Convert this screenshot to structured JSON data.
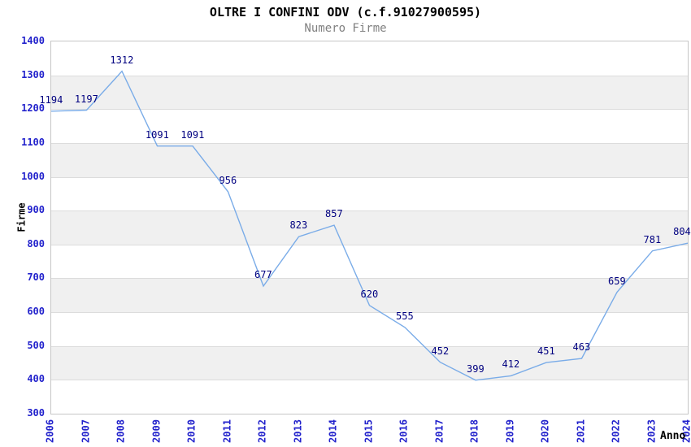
{
  "chart_data": {
    "type": "line",
    "title": "OLTRE I CONFINI ODV (c.f.91027900595)",
    "subtitle": "Numero Firme",
    "xlabel": "Anno",
    "ylabel": "Firme",
    "categories": [
      "2006",
      "2007",
      "2008",
      "2009",
      "2010",
      "2011",
      "2012",
      "2013",
      "2014",
      "2015",
      "2016",
      "2017",
      "2018",
      "2019",
      "2020",
      "2021",
      "2022",
      "2023",
      "2024"
    ],
    "values": [
      1194,
      1197,
      1312,
      1091,
      1091,
      956,
      677,
      823,
      857,
      620,
      555,
      452,
      399,
      412,
      451,
      463,
      659,
      781,
      804
    ],
    "ylim": [
      300,
      1400
    ],
    "ytick_step": 100,
    "grid": "horizontal-alternating-bands",
    "legend": "none",
    "colors": {
      "line": "#7aace8",
      "data_label": "#000080",
      "tick_label": "#2222cc",
      "band_gray": "#f0f0f0",
      "band_white": "#ffffff",
      "gridline": "#dcdcdc",
      "plot_border": "#c6c6c6",
      "title": "#000000",
      "subtitle": "#808080"
    }
  }
}
